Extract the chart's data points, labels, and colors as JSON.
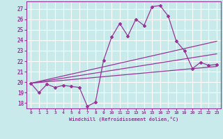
{
  "xlabel": "Windchill (Refroidissement éolien,°C)",
  "ylabel": "",
  "background_color": "#c8eaea",
  "grid_color": "#ffffff",
  "line_color": "#993399",
  "xlim": [
    -0.5,
    23.5
  ],
  "ylim": [
    17.5,
    27.7
  ],
  "yticks": [
    18,
    19,
    20,
    21,
    22,
    23,
    24,
    25,
    26,
    27
  ],
  "xticks": [
    0,
    1,
    2,
    3,
    4,
    5,
    6,
    7,
    8,
    9,
    10,
    11,
    12,
    13,
    14,
    15,
    16,
    17,
    18,
    19,
    20,
    21,
    22,
    23
  ],
  "series1_x": [
    0,
    1,
    2,
    3,
    4,
    5,
    6,
    7,
    8,
    9,
    10,
    11,
    12,
    13,
    14,
    15,
    16,
    17,
    18,
    19,
    20,
    21,
    22,
    23
  ],
  "series1_y": [
    19.9,
    19.0,
    19.8,
    19.5,
    19.7,
    19.6,
    19.5,
    17.7,
    18.1,
    22.1,
    24.3,
    25.6,
    24.4,
    26.0,
    25.4,
    27.2,
    27.3,
    26.3,
    23.9,
    23.0,
    21.3,
    21.9,
    21.6,
    21.7
  ],
  "series2_x": [
    0,
    23
  ],
  "series2_y": [
    19.9,
    23.9
  ],
  "series3_x": [
    0,
    23
  ],
  "series3_y": [
    19.9,
    22.7
  ],
  "series4_x": [
    0,
    23
  ],
  "series4_y": [
    19.9,
    21.5
  ]
}
